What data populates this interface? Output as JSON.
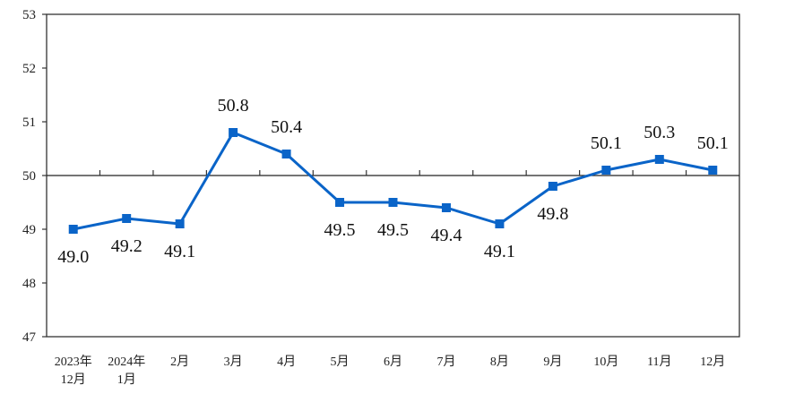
{
  "chart_data": {
    "type": "line",
    "categories": [
      [
        "2023年",
        "12月"
      ],
      [
        "2024年",
        "1月"
      ],
      [
        "2月"
      ],
      [
        "3月"
      ],
      [
        "4月"
      ],
      [
        "5月"
      ],
      [
        "6月"
      ],
      [
        "7月"
      ],
      [
        "8月"
      ],
      [
        "9月"
      ],
      [
        "10月"
      ],
      [
        "11月"
      ],
      [
        "12月"
      ]
    ],
    "values": [
      49.0,
      49.2,
      49.1,
      50.8,
      50.4,
      49.5,
      49.5,
      49.4,
      49.1,
      49.8,
      50.1,
      50.3,
      50.1
    ],
    "data_labels": [
      "49.0",
      "49.2",
      "49.1",
      "50.8",
      "50.4",
      "49.5",
      "49.5",
      "49.4",
      "49.1",
      "49.8",
      "50.1",
      "50.3",
      "50.1"
    ],
    "ylim": [
      47,
      53
    ],
    "yticks": [
      "47",
      "48",
      "49",
      "50",
      "51",
      "52",
      "53"
    ],
    "reference_line": 50,
    "grid": false,
    "title": "",
    "xlabel": "",
    "ylabel": "",
    "colors": {
      "series": "#0a64c8",
      "axis": "#333333"
    }
  }
}
